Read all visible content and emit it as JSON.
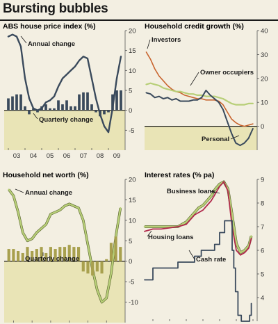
{
  "page": {
    "title": "Bursting bubbles",
    "colors": {
      "background": "#f3efe2",
      "negative_band": "#e9e4b6",
      "dark_series": "#3a4a5c",
      "green_series": "#b8cf78",
      "bar_olive": "#a8a04e",
      "orange_series": "#c8642e",
      "red_series": "#b0284a"
    }
  },
  "chart_data": [
    {
      "id": "abs",
      "type": "bar",
      "title": "ABS house price index (%)",
      "x_tick_labels": [
        "03",
        "04",
        "05",
        "06",
        "07",
        "08",
        "09"
      ],
      "y_right": {
        "ticks": [
          20,
          15,
          10,
          5,
          0,
          -5
        ],
        "tick_labels": [
          "20",
          "15",
          "10",
          "5",
          "0",
          "-5"
        ],
        "ylim": [
          -10,
          20
        ]
      },
      "grid": false,
      "series": [
        {
          "name": "Annual change",
          "type": "line",
          "x": [
            2003.0,
            2003.25,
            2003.5,
            2003.75,
            2004.0,
            2004.25,
            2004.5,
            2004.75,
            2005.0,
            2005.25,
            2005.5,
            2005.75,
            2006.0,
            2006.25,
            2006.5,
            2006.75,
            2007.0,
            2007.25,
            2007.5,
            2007.75,
            2008.0,
            2008.25,
            2008.5,
            2008.75,
            2009.0,
            2009.25,
            2009.5,
            2009.75
          ],
          "y": [
            18.5,
            19.0,
            18.5,
            16.0,
            8.0,
            3.0,
            0.5,
            0.0,
            0.5,
            2.0,
            2.5,
            3.5,
            6.0,
            8.0,
            9.0,
            10.0,
            11.0,
            12.5,
            13.5,
            13.0,
            8.0,
            3.0,
            -1.0,
            -4.0,
            -5.5,
            0.5,
            8.0,
            13.5
          ]
        },
        {
          "name": "Quarterly change",
          "type": "bar",
          "x": [
            2003.0,
            2003.25,
            2003.5,
            2003.75,
            2004.0,
            2004.25,
            2004.5,
            2004.75,
            2005.0,
            2005.25,
            2005.5,
            2005.75,
            2006.0,
            2006.25,
            2006.5,
            2006.75,
            2007.0,
            2007.25,
            2007.5,
            2007.75,
            2008.0,
            2008.25,
            2008.5,
            2008.75,
            2009.0,
            2009.25,
            2009.5,
            2009.75
          ],
          "y": [
            3.0,
            3.5,
            4.0,
            4.0,
            1.0,
            -1.0,
            0.5,
            -0.5,
            1.0,
            1.5,
            0.5,
            0.5,
            2.5,
            1.5,
            2.5,
            1.0,
            1.0,
            4.0,
            4.5,
            4.5,
            1.5,
            -0.5,
            -1.5,
            -1.0,
            -0.5,
            4.0,
            5.0,
            5.0
          ]
        }
      ],
      "annotations": {
        "annual": "Annual change",
        "quarterly": "Quarterly change"
      }
    },
    {
      "id": "credit",
      "type": "line",
      "title": "Household credit growth (%)",
      "x_tick_labels": [],
      "y_right": {
        "ticks": [
          40,
          30,
          20,
          10,
          0
        ],
        "tick_labels": [
          "40",
          "30",
          "20",
          "10",
          "0"
        ],
        "ylim": [
          -10,
          40
        ]
      },
      "grid": false,
      "series": [
        {
          "name": "Investors",
          "x": [
            2003.5,
            2003.75,
            2004.0,
            2004.25,
            2004.5,
            2004.75,
            2005.0,
            2005.25,
            2005.5,
            2005.75,
            2006.0,
            2006.25,
            2006.5,
            2006.75,
            2007.0,
            2007.25,
            2007.5,
            2007.75,
            2008.0,
            2008.25,
            2008.5,
            2008.75,
            2009.0,
            2009.25,
            2009.5,
            2009.75
          ],
          "y": [
            31.0,
            28.0,
            24.0,
            21.0,
            19.0,
            17.0,
            15.5,
            14.5,
            14.0,
            13.0,
            12.5,
            12.0,
            11.5,
            11.5,
            11.0,
            11.0,
            11.0,
            10.5,
            9.0,
            6.0,
            3.0,
            1.5,
            0.5,
            0.0,
            0.5,
            1.0
          ]
        },
        {
          "name": "Owner occupiers",
          "x": [
            2003.5,
            2003.75,
            2004.0,
            2004.25,
            2004.5,
            2004.75,
            2005.0,
            2005.25,
            2005.5,
            2005.75,
            2006.0,
            2006.25,
            2006.5,
            2006.75,
            2007.0,
            2007.25,
            2007.5,
            2007.75,
            2008.0,
            2008.25,
            2008.5,
            2008.75,
            2009.0,
            2009.25,
            2009.5,
            2009.75
          ],
          "y": [
            17.5,
            18.0,
            17.5,
            17.0,
            16.0,
            15.5,
            15.0,
            14.5,
            14.5,
            14.0,
            13.5,
            13.5,
            13.0,
            13.0,
            12.5,
            12.5,
            12.5,
            12.0,
            11.5,
            10.5,
            9.5,
            9.0,
            9.0,
            9.0,
            9.5,
            9.5
          ]
        },
        {
          "name": "Personal",
          "x": [
            2003.5,
            2003.75,
            2004.0,
            2004.25,
            2004.5,
            2004.75,
            2005.0,
            2005.25,
            2005.5,
            2005.75,
            2006.0,
            2006.25,
            2006.5,
            2006.75,
            2007.0,
            2007.25,
            2007.5,
            2007.75,
            2008.0,
            2008.25,
            2008.5,
            2008.75,
            2009.0,
            2009.25,
            2009.5,
            2009.75
          ],
          "y": [
            14.0,
            13.5,
            12.0,
            12.5,
            11.5,
            12.0,
            11.0,
            11.5,
            10.5,
            10.5,
            10.5,
            11.0,
            11.0,
            12.0,
            15.0,
            13.0,
            11.5,
            10.0,
            7.0,
            2.0,
            -3.0,
            -7.0,
            -8.0,
            -7.0,
            -5.0,
            -1.0
          ]
        }
      ],
      "annotations": {
        "investors": "Investors",
        "owner": "Owner occupiers",
        "personal": "Personal"
      }
    },
    {
      "id": "networth",
      "type": "bar",
      "title": "Household net worth (%)",
      "x_tick_labels": [
        "04",
        "05",
        "06",
        "07",
        "08",
        "09"
      ],
      "y_right": {
        "ticks": [
          20,
          15,
          10,
          5,
          0,
          -5,
          -10
        ],
        "tick_labels": [
          "20",
          "15",
          "10",
          "5",
          "0",
          "-5",
          "-10"
        ],
        "ylim": [
          -15,
          20
        ]
      },
      "grid": false,
      "series": [
        {
          "name": "Annual change",
          "type": "line",
          "x": [
            2003.75,
            2004.0,
            2004.25,
            2004.5,
            2004.75,
            2005.0,
            2005.25,
            2005.5,
            2005.75,
            2006.0,
            2006.25,
            2006.5,
            2006.75,
            2007.0,
            2007.25,
            2007.5,
            2007.75,
            2008.0,
            2008.25,
            2008.5,
            2008.75,
            2009.0,
            2009.25,
            2009.5,
            2009.75
          ],
          "y": [
            17.5,
            16.0,
            12.0,
            7.0,
            5.0,
            5.5,
            7.0,
            8.0,
            9.0,
            11.5,
            12.0,
            12.5,
            13.5,
            14.0,
            13.5,
            13.0,
            10.0,
            4.0,
            -2.0,
            -7.0,
            -10.0,
            -9.0,
            -3.0,
            6.0,
            13.0
          ]
        },
        {
          "name": "Quarterly change",
          "type": "bar",
          "x": [
            2003.75,
            2004.0,
            2004.25,
            2004.5,
            2004.75,
            2005.0,
            2005.25,
            2005.5,
            2005.75,
            2006.0,
            2006.25,
            2006.5,
            2006.75,
            2007.0,
            2007.25,
            2007.5,
            2007.75,
            2008.0,
            2008.25,
            2008.5,
            2008.75,
            2009.0,
            2009.25,
            2009.5,
            2009.75
          ],
          "y": [
            3.0,
            3.0,
            2.5,
            2.0,
            3.5,
            2.5,
            3.0,
            3.5,
            2.0,
            3.5,
            3.0,
            3.5,
            3.5,
            4.0,
            3.5,
            3.5,
            -2.5,
            -3.0,
            -3.5,
            -2.5,
            -3.0,
            0.5,
            4.5,
            6.0,
            3.5
          ]
        }
      ],
      "annotations": {
        "annual": "Annual change",
        "quarterly": "Quarterly change"
      }
    },
    {
      "id": "rates",
      "type": "line",
      "title": "Interest rates (% pa)",
      "x_tick_labels": [
        "04",
        "05",
        "06",
        "07",
        "08",
        "09",
        "10"
      ],
      "y_right": {
        "ticks": [
          9,
          8,
          7,
          6,
          5,
          4
        ],
        "tick_labels": [
          "9",
          "8",
          "7",
          "6",
          "5",
          "4"
        ],
        "ylim": [
          3,
          9
        ]
      },
      "grid": false,
      "series": [
        {
          "name": "Business loans",
          "x": [
            2003.5,
            2004.0,
            2004.5,
            2005.0,
            2005.5,
            2006.0,
            2006.25,
            2006.5,
            2006.75,
            2007.0,
            2007.25,
            2007.5,
            2007.75,
            2008.0,
            2008.25,
            2008.5,
            2008.75,
            2009.0,
            2009.25,
            2009.5,
            2009.75,
            2009.9
          ],
          "y": [
            7.0,
            7.0,
            7.0,
            7.0,
            7.0,
            7.2,
            7.4,
            7.6,
            7.8,
            7.9,
            8.1,
            8.3,
            8.6,
            8.8,
            8.9,
            8.6,
            7.5,
            6.3,
            5.9,
            6.0,
            6.2,
            6.6
          ]
        },
        {
          "name": "Housing loans",
          "x": [
            2003.5,
            2004.0,
            2004.5,
            2005.0,
            2005.5,
            2006.0,
            2006.25,
            2006.5,
            2006.75,
            2007.0,
            2007.25,
            2007.5,
            2007.75,
            2008.0,
            2008.25,
            2008.5,
            2008.75,
            2009.0,
            2009.25,
            2009.5,
            2009.75,
            2009.9
          ],
          "y": [
            6.8,
            6.9,
            6.9,
            6.95,
            7.0,
            7.1,
            7.3,
            7.5,
            7.6,
            7.7,
            7.9,
            8.1,
            8.4,
            8.7,
            8.9,
            8.5,
            7.0,
            6.0,
            5.8,
            5.9,
            6.1,
            6.5
          ]
        },
        {
          "name": "Cash rate",
          "step": true,
          "x": [
            2003.5,
            2003.9,
            2004.0,
            2005.2,
            2005.5,
            2006.4,
            2006.5,
            2006.8,
            2006.9,
            2007.6,
            2007.7,
            2007.9,
            2008.0,
            2008.2,
            2008.3,
            2008.7,
            2008.75,
            2008.85,
            2008.95,
            2009.1,
            2009.3,
            2009.8,
            2009.9
          ],
          "y": [
            4.75,
            4.75,
            5.25,
            5.25,
            5.5,
            5.5,
            5.75,
            5.75,
            6.0,
            6.0,
            6.25,
            6.25,
            6.75,
            6.75,
            7.25,
            7.25,
            6.0,
            5.25,
            4.25,
            3.25,
            3.0,
            3.25,
            3.75
          ]
        }
      ],
      "annotations": {
        "business": "Business loans",
        "housing": "Housing loans",
        "cash": "Cash rate"
      }
    }
  ]
}
